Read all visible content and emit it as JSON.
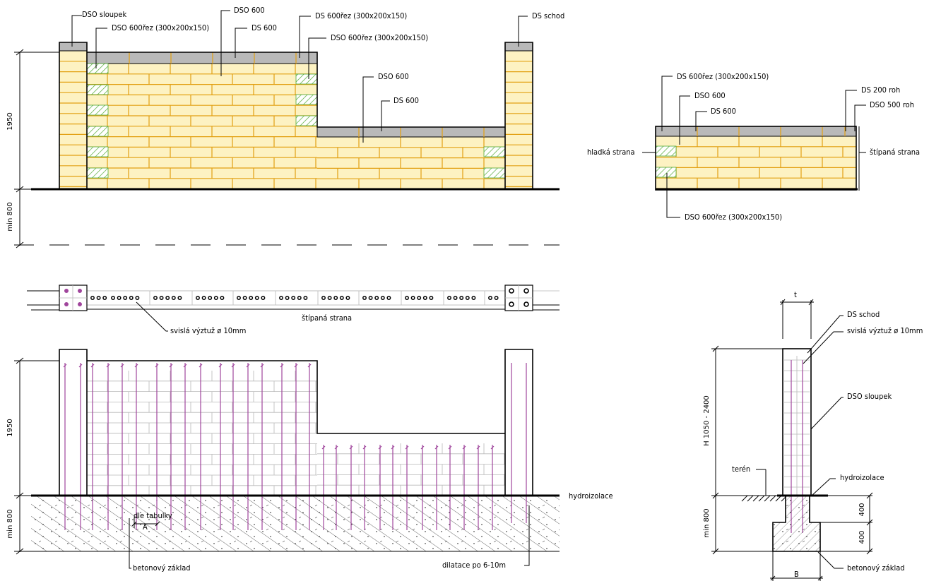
{
  "labels": {
    "top_left": {
      "dso_sloupek": "DSO sloupek",
      "dso600rez_a": "DSO 600řez (300x200x150)",
      "dso600_a": "DSO 600",
      "ds600_a": "DS 600",
      "ds600rez": "DS 600řez (300x200x150)",
      "dso600rez_b": "DSO 600řez (300x200x150)",
      "ds_schod": "DS schod",
      "dso600_b": "DSO 600",
      "ds600_b": "DS 600",
      "dim_height": "1950",
      "dim_depth": "min 800"
    },
    "top_right": {
      "ds600rez": "DS 600řez (300x200x150)",
      "dso600": "DSO 600",
      "ds600": "DS 600",
      "ds200roh": "DS 200 roh",
      "dso500roh": "DSO 500 roh",
      "hladka": "hladká strana",
      "stipana": "štípaná strana",
      "dso600rez_bottom": "DSO 600řez (300x200x150)"
    },
    "plan": {
      "stipana": "štípaná strana",
      "vyztuz": "svislá výztuž ø 10mm"
    },
    "bottom_left": {
      "dim_height": "1950",
      "dim_depth": "min 800",
      "hydroizolace": "hydroizolace",
      "dle_tabulky": "dle tabulky",
      "a": "A",
      "betonovy": "betonový základ",
      "dilatace": "dilatace po 6-10m"
    },
    "section": {
      "t": "t",
      "ds_schod": "DS schod",
      "vyztuz": "svislá výztuž  ø 10mm",
      "dso_sloupek": "DSO sloupek",
      "h": "H 1050 - 2400",
      "teren": "terén",
      "hydroizolace": "hydroizolace",
      "d400a": "400",
      "d400b": "400",
      "min800": "min 800",
      "b": "B",
      "betonovy": "betonový základ"
    }
  },
  "colors": {
    "brick_joint": "#e2a012",
    "brick_fill": "#fdf2c2",
    "cap": "#b9b9b9",
    "hatch_green": "#4fa832",
    "rebar": "#a0459c",
    "red_line": "#d42020"
  }
}
